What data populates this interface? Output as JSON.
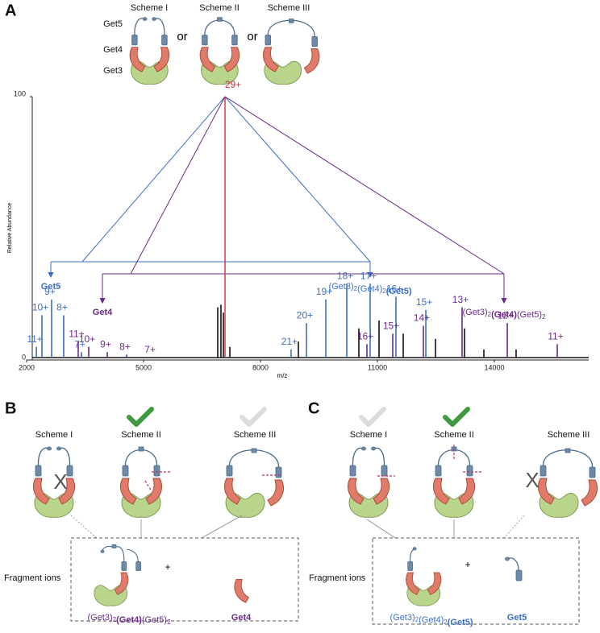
{
  "panel_a": {
    "label": "A",
    "schemes": [
      "Scheme I",
      "Scheme II",
      "Scheme III"
    ],
    "or": [
      "or",
      "or"
    ],
    "components": [
      "Get5",
      "Get4",
      "Get3"
    ],
    "spectrum": {
      "type": "spectrum",
      "y_label": "Relative Abundance",
      "x_label": "m/z",
      "xlim": [
        2000,
        16400
      ],
      "xticks": [
        2000,
        5000,
        8000,
        11000,
        14000
      ],
      "ylim": [
        0,
        100
      ],
      "yticks": [
        0,
        100
      ],
      "peaks": [
        {
          "label": "29+",
          "mz": 7090,
          "abundance": 100,
          "color": "#d0303a"
        },
        {
          "label": "11+",
          "mz": 2250,
          "abundance": 5,
          "color": "#3d6fc0"
        },
        {
          "label": "10+",
          "mz": 2393,
          "abundance": 17,
          "color": "#3d6fc0"
        },
        {
          "label": "9+",
          "mz": 2641,
          "abundance": 23,
          "color": "#3d6fc0"
        },
        {
          "label": "8+",
          "mz": 2952,
          "abundance": 17,
          "color": "#3d6fc0"
        },
        {
          "label": "7+",
          "mz": 3407,
          "abundance": 3,
          "color": "#3d6fc0"
        },
        {
          "label": "11+",
          "mz": 3324,
          "abundance": 7,
          "color": "#6b2a8a"
        },
        {
          "label": "10+",
          "mz": 3593,
          "abundance": 5,
          "color": "#6b2a8a"
        },
        {
          "label": "9+",
          "mz": 4069,
          "abundance": 3,
          "color": "#6b2a8a"
        },
        {
          "label": "8+",
          "mz": 4566,
          "abundance": 2,
          "color": "#6b2a8a"
        },
        {
          "label": "7+",
          "mz": 5207,
          "abundance": 1,
          "color": "#6b2a8a"
        },
        {
          "label": "21+",
          "mz": 8786,
          "abundance": 4,
          "color": "#3d6fc0"
        },
        {
          "label": "20+",
          "mz": 9179,
          "abundance": 14,
          "color": "#3d6fc0"
        },
        {
          "label": "19+",
          "mz": 9676,
          "abundance": 23,
          "color": "#3d6fc0"
        },
        {
          "label": "18+",
          "mz": 10214,
          "abundance": 29,
          "color": "#3d6fc0"
        },
        {
          "label": "17+",
          "mz": 10814,
          "abundance": 29,
          "color": "#3d6fc0"
        },
        {
          "label": "16+",
          "mz": 11476,
          "abundance": 24,
          "color": "#3d6fc0"
        },
        {
          "label": "15+",
          "mz": 12242,
          "abundance": 19,
          "color": "#3d6fc0"
        },
        {
          "label": "16+",
          "mz": 10731,
          "abundance": 6,
          "color": "#6b2a8a"
        },
        {
          "label": "15+",
          "mz": 11393,
          "abundance": 10,
          "color": "#6b2a8a"
        },
        {
          "label": "14+",
          "mz": 12179,
          "abundance": 13,
          "color": "#6b2a8a"
        },
        {
          "label": "13+",
          "mz": 13172,
          "abundance": 20,
          "color": "#6b2a8a"
        },
        {
          "label": "12+",
          "mz": 14331,
          "abundance": 14,
          "color": "#6b2a8a"
        },
        {
          "label": "11+",
          "mz": 15614,
          "abundance": 6,
          "color": "#6b2a8a"
        },
        {
          "mz": 6903,
          "abundance": 20,
          "color": "#111111"
        },
        {
          "mz": 6986,
          "abundance": 21,
          "color": "#111111"
        },
        {
          "mz": 7048,
          "abundance": 18,
          "color": "#111111"
        },
        {
          "mz": 7214,
          "abundance": 5,
          "color": "#111111"
        },
        {
          "mz": 8972,
          "abundance": 7,
          "color": "#111111"
        },
        {
          "mz": 10524,
          "abundance": 12,
          "color": "#111111"
        },
        {
          "mz": 11041,
          "abundance": 15,
          "color": "#111111"
        },
        {
          "mz": 11662,
          "abundance": 10,
          "color": "#111111"
        },
        {
          "mz": 12490,
          "abundance": 8,
          "color": "#111111"
        },
        {
          "mz": 13234,
          "abundance": 12,
          "color": "#111111"
        },
        {
          "mz": 13731,
          "abundance": 4,
          "color": "#111111"
        },
        {
          "mz": 14558,
          "abundance": 4,
          "color": "#111111"
        }
      ],
      "annotations": {
        "get5": [
          {
            "text": "Get5",
            "style": "bold"
          }
        ],
        "complex_get5": [
          {
            "text": "(Get3)",
            "style": "normal"
          },
          {
            "text": "2",
            "style": "sub"
          },
          {
            "text": "(Get4)",
            "style": "normal"
          },
          {
            "text": "2",
            "style": "sub"
          },
          {
            "text": "(Get5)",
            "style": "bold"
          }
        ],
        "get4": [
          {
            "text": "Get4",
            "style": "bold"
          }
        ],
        "complex_get4": [
          {
            "text": "(Get3)",
            "style": "normal"
          },
          {
            "text": "2",
            "style": "sub"
          },
          {
            "text": "(Get4)",
            "style": "bold"
          },
          {
            "text": "(Get5)",
            "style": "normal"
          },
          {
            "text": "2",
            "style": "sub"
          }
        ]
      }
    }
  },
  "panel_b": {
    "label": "B",
    "schemes": [
      "Scheme I",
      "Scheme II",
      "Scheme III"
    ],
    "cross": "X",
    "fragment_title": "Fragment ions",
    "plus": "+",
    "fragments": [
      [
        {
          "text": "(Get3)",
          "style": "normal"
        },
        {
          "text": "2",
          "style": "sub"
        },
        {
          "text": "(Get4)",
          "style": "bold"
        },
        {
          "text": "(Get5)",
          "style": "normal"
        },
        {
          "text": "2",
          "style": "sub"
        }
      ],
      [
        {
          "text": "Get4",
          "style": "bold"
        }
      ]
    ]
  },
  "panel_c": {
    "label": "C",
    "schemes": [
      "Scheme I",
      "Scheme II",
      "Scheme III"
    ],
    "cross": "X",
    "fragment_title": "Fragment ions",
    "plus": "+",
    "fragments": [
      [
        {
          "text": "(Get3)",
          "style": "normal"
        },
        {
          "text": "2",
          "style": "sub"
        },
        {
          "text": "(Get4)",
          "style": "normal"
        },
        {
          "text": "2",
          "style": "sub"
        },
        {
          "text": "(Get5)",
          "style": "bold"
        }
      ],
      [
        {
          "text": "Get5",
          "style": "bold"
        }
      ]
    ]
  }
}
